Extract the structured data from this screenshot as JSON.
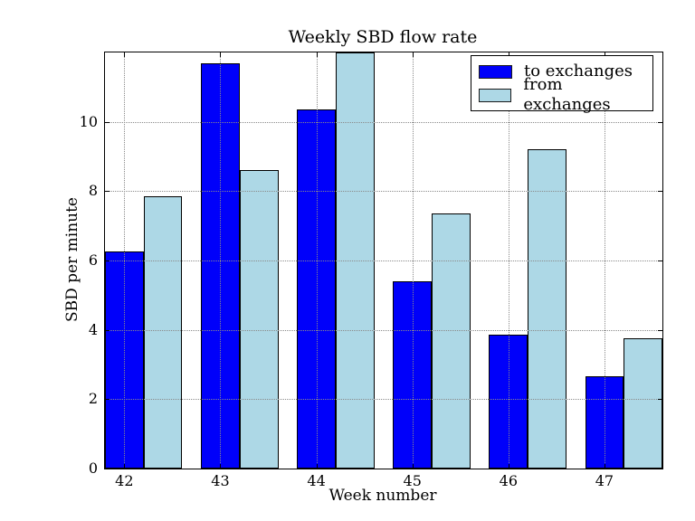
{
  "chart_data": {
    "type": "bar",
    "title": "Weekly SBD flow rate",
    "xlabel": "Week number",
    "ylabel": "SBD per minute",
    "categories": [
      "42",
      "43",
      "44",
      "45",
      "46",
      "47"
    ],
    "series": [
      {
        "name": "to exchanges",
        "color": "#0000fa",
        "values": [
          6.25,
          11.7,
          10.35,
          5.4,
          3.85,
          2.65
        ]
      },
      {
        "name": "from exchanges",
        "color": "#add8e6",
        "values": [
          7.85,
          8.6,
          12.0,
          7.35,
          9.2,
          3.75
        ]
      }
    ],
    "ylim": [
      0,
      12
    ],
    "yticks": [
      0,
      2,
      4,
      6,
      8,
      10
    ],
    "grid": "dotted",
    "legend_position": "upper right",
    "bar_edge_color": "#000000",
    "background_color": "#ffffff"
  }
}
